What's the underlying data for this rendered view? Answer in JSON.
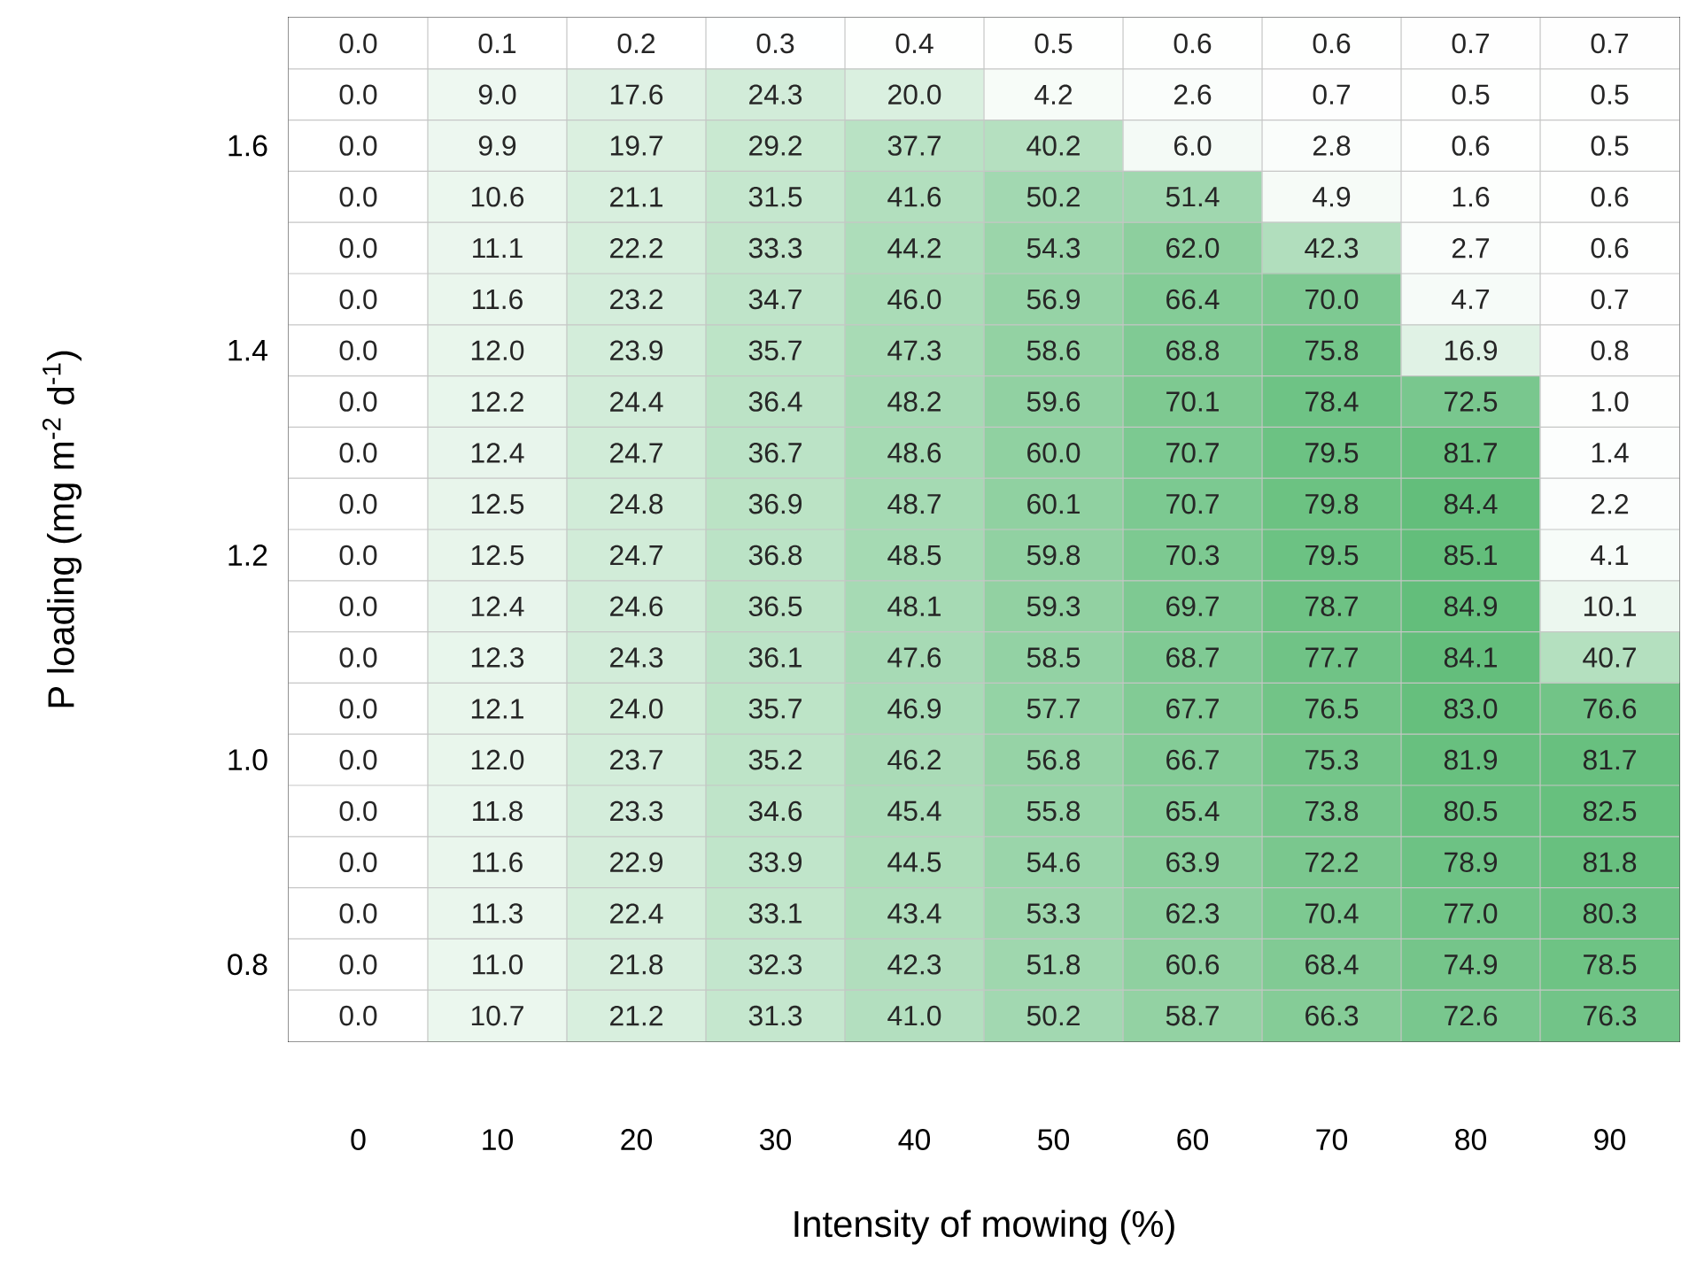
{
  "chart_data": {
    "type": "heatmap",
    "xlabel": "Intensity of mowing (%)",
    "ylabel": "P loading (mg m$^{-2}$ d$^{-1}$)",
    "categories": [
      "0",
      "10",
      "20",
      "30",
      "40",
      "50",
      "60",
      "70",
      "80",
      "90"
    ],
    "y_categories": [
      null,
      null,
      "1.6",
      null,
      null,
      null,
      "1.4",
      null,
      null,
      null,
      "1.2",
      null,
      null,
      null,
      "1.0",
      null,
      null,
      null,
      "0.8",
      null
    ],
    "data_labels": true,
    "cell_labels": [
      [
        "0.0",
        "0.1",
        "0.2",
        "0.3",
        "0.4",
        "0.5",
        "0.6",
        "0.6",
        "0.7",
        "0.7"
      ],
      [
        "0.0",
        "9.0",
        "17.6",
        "24.3",
        "20.0",
        "4.2",
        "2.6",
        "0.7",
        "0.5",
        "0.5"
      ],
      [
        "0.0",
        "9.9",
        "19.7",
        "29.2",
        "37.7",
        "40.2",
        "6.0",
        "2.8",
        "0.6",
        "0.5"
      ],
      [
        "0.0",
        "10.6",
        "21.1",
        "31.5",
        "41.6",
        "50.2",
        "51.4",
        "4.9",
        "1.6",
        "0.6"
      ],
      [
        "0.0",
        "11.1",
        "22.2",
        "33.3",
        "44.2",
        "54.3",
        "62.0",
        "42.3",
        "2.7",
        "0.6"
      ],
      [
        "0.0",
        "11.6",
        "23.2",
        "34.7",
        "46.0",
        "56.9",
        "66.4",
        "70.0",
        "4.7",
        "0.7"
      ],
      [
        "0.0",
        "12.0",
        "23.9",
        "35.7",
        "47.3",
        "58.6",
        "68.8",
        "75.8",
        "16.9",
        "0.8"
      ],
      [
        "0.0",
        "12.2",
        "24.4",
        "36.4",
        "48.2",
        "59.6",
        "70.1",
        "78.4",
        "72.5",
        "1.0"
      ],
      [
        "0.0",
        "12.4",
        "24.7",
        "36.7",
        "48.6",
        "60.0",
        "70.7",
        "79.5",
        "81.7",
        "1.4"
      ],
      [
        "0.0",
        "12.5",
        "24.8",
        "36.9",
        "48.7",
        "60.1",
        "70.7",
        "79.8",
        "84.4",
        "2.2"
      ],
      [
        "0.0",
        "12.5",
        "24.7",
        "36.8",
        "48.5",
        "59.8",
        "70.3",
        "79.5",
        "85.1",
        "4.1"
      ],
      [
        "0.0",
        "12.4",
        "24.6",
        "36.5",
        "48.1",
        "59.3",
        "69.7",
        "78.7",
        "84.9",
        "10.1"
      ],
      [
        "0.0",
        "12.3",
        "24.3",
        "36.1",
        "47.6",
        "58.5",
        "68.7",
        "77.7",
        "84.1",
        "40.7"
      ],
      [
        "0.0",
        "12.1",
        "24.0",
        "35.7",
        "46.9",
        "57.7",
        "67.7",
        "76.5",
        "83.0",
        "76.6"
      ],
      [
        "0.0",
        "12.0",
        "23.7",
        "35.2",
        "46.2",
        "56.8",
        "66.7",
        "75.3",
        "81.9",
        "81.7"
      ],
      [
        "0.0",
        "11.8",
        "23.3",
        "34.6",
        "45.4",
        "55.8",
        "65.4",
        "73.8",
        "80.5",
        "82.5"
      ],
      [
        "0.0",
        "11.6",
        "22.9",
        "33.9",
        "44.5",
        "54.6",
        "63.9",
        "72.2",
        "78.9",
        "81.8"
      ],
      [
        "0.0",
        "11.3",
        "22.4",
        "33.1",
        "43.4",
        "53.3",
        "62.3",
        "70.4",
        "77.0",
        "80.3"
      ],
      [
        "0.0",
        "11.0",
        "21.8",
        "32.3",
        "42.3",
        "51.8",
        "60.6",
        "68.4",
        "74.9",
        "78.5"
      ],
      [
        "0.0",
        "10.7",
        "21.2",
        "31.3",
        "41.0",
        "50.2",
        "58.7",
        "66.3",
        "72.6",
        "76.3"
      ]
    ],
    "cells": [
      [
        0.0,
        0.1,
        0.2,
        0.3,
        0.4,
        0.5,
        0.6,
        0.6,
        0.7,
        0.7
      ],
      [
        0.0,
        9.0,
        17.6,
        24.3,
        20.0,
        4.2,
        2.6,
        0.7,
        0.5,
        0.5
      ],
      [
        0.0,
        9.9,
        19.7,
        29.2,
        37.7,
        40.2,
        6.0,
        2.8,
        0.6,
        0.5
      ],
      [
        0.0,
        10.6,
        21.1,
        31.5,
        41.6,
        50.2,
        51.4,
        4.9,
        1.6,
        0.6
      ],
      [
        0.0,
        11.1,
        22.2,
        33.3,
        44.2,
        54.3,
        62.0,
        42.3,
        2.7,
        0.6
      ],
      [
        0.0,
        11.6,
        23.2,
        34.7,
        46.0,
        56.9,
        66.4,
        70.0,
        4.7,
        0.7
      ],
      [
        0.0,
        12.0,
        23.9,
        35.7,
        47.3,
        58.6,
        68.8,
        75.8,
        16.9,
        0.8
      ],
      [
        0.0,
        12.2,
        24.4,
        36.4,
        48.2,
        59.6,
        70.1,
        78.4,
        72.5,
        1.0
      ],
      [
        0.0,
        12.4,
        24.7,
        36.7,
        48.6,
        60.0,
        70.7,
        79.5,
        81.7,
        1.4
      ],
      [
        0.0,
        12.5,
        24.8,
        36.9,
        48.7,
        60.1,
        70.7,
        79.8,
        84.4,
        2.2
      ],
      [
        0.0,
        12.5,
        24.7,
        36.8,
        48.5,
        59.8,
        70.3,
        79.5,
        85.1,
        4.1
      ],
      [
        0.0,
        12.4,
        24.6,
        36.5,
        48.1,
        59.3,
        69.7,
        78.7,
        84.9,
        10.1
      ],
      [
        0.0,
        12.3,
        24.3,
        36.1,
        47.6,
        58.5,
        68.7,
        77.7,
        84.1,
        40.7
      ],
      [
        0.0,
        12.1,
        24.0,
        35.7,
        46.9,
        57.7,
        67.7,
        76.5,
        83.0,
        76.6
      ],
      [
        0.0,
        12.0,
        23.7,
        35.2,
        46.2,
        56.8,
        66.7,
        75.3,
        81.9,
        81.7
      ],
      [
        0.0,
        11.8,
        23.3,
        34.6,
        45.4,
        55.8,
        65.4,
        73.8,
        80.5,
        82.5
      ],
      [
        0.0,
        11.6,
        22.9,
        33.9,
        44.5,
        54.6,
        63.9,
        72.2,
        78.9,
        81.8
      ],
      [
        0.0,
        11.3,
        22.4,
        33.1,
        43.4,
        53.3,
        62.3,
        70.4,
        77.0,
        80.3
      ],
      [
        0.0,
        11.0,
        21.8,
        32.3,
        42.3,
        51.8,
        60.6,
        68.4,
        74.9,
        78.5
      ],
      [
        0.0,
        10.7,
        21.2,
        31.3,
        41.0,
        50.2,
        58.7,
        66.3,
        72.6,
        76.3
      ]
    ]
  }
}
